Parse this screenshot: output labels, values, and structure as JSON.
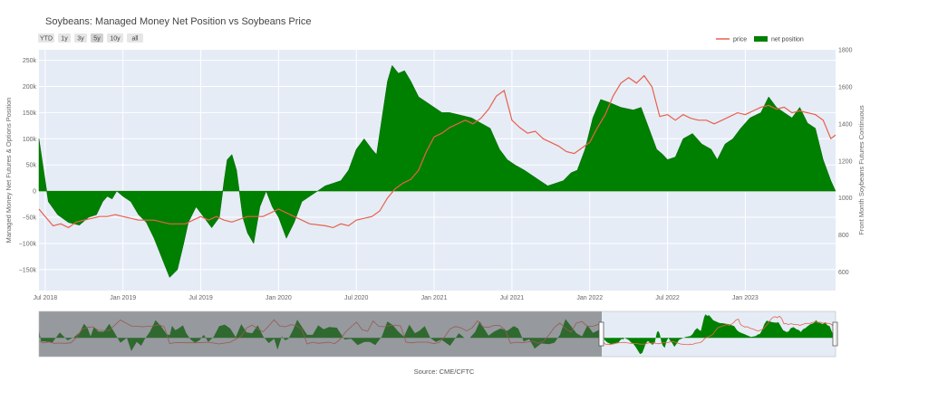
{
  "chart_data": {
    "type": "area",
    "title": "Soybeans: Managed Money Net Position vs Soybeans Price",
    "source": "Source: CME/CFTC",
    "range_buttons": [
      {
        "label": "YTD",
        "active": false
      },
      {
        "label": "1y",
        "active": false
      },
      {
        "label": "3y",
        "active": false
      },
      {
        "label": "5y",
        "active": true
      },
      {
        "label": "10y",
        "active": false
      },
      {
        "label": "all",
        "active": false
      }
    ],
    "legend": {
      "placement": "top-right",
      "items": [
        {
          "name": "price",
          "color": "#e8604c"
        },
        {
          "name": "net position",
          "color": "#008000"
        }
      ]
    },
    "ylabel": "Managed Money Net Futures & Options Position",
    "y2label": "Front Month Soybeans Futures Continuous",
    "xlim": [
      2018.46,
      2023.58
    ],
    "ylim": [
      -190000,
      270000
    ],
    "y2lim": [
      500,
      1800
    ],
    "x_ticks": [
      {
        "label": "Jul 2018",
        "x": 2018.5
      },
      {
        "label": "Jan 2019",
        "x": 2019.0
      },
      {
        "label": "Jul 2019",
        "x": 2019.5
      },
      {
        "label": "Jan 2020",
        "x": 2020.0
      },
      {
        "label": "Jul 2020",
        "x": 2020.5
      },
      {
        "label": "Jan 2021",
        "x": 2021.0
      },
      {
        "label": "Jul 2021",
        "x": 2021.5
      },
      {
        "label": "Jan 2022",
        "x": 2022.0
      },
      {
        "label": "Jul 2022",
        "x": 2022.5
      },
      {
        "label": "Jan 2023",
        "x": 2023.0
      }
    ],
    "y_ticks": [
      {
        "label": "250k",
        "v": 250000
      },
      {
        "label": "200k",
        "v": 200000
      },
      {
        "label": "150k",
        "v": 150000
      },
      {
        "label": "100k",
        "v": 100000
      },
      {
        "label": "50k",
        "v": 50000
      },
      {
        "label": "0",
        "v": 0
      },
      {
        "label": "−50k",
        "v": -50000
      },
      {
        "label": "−100k",
        "v": -100000
      },
      {
        "label": "−150k",
        "v": -150000
      }
    ],
    "y2_ticks": [
      {
        "label": "1800",
        "v": 1800
      },
      {
        "label": "1600",
        "v": 1600
      },
      {
        "label": "1400",
        "v": 1400
      },
      {
        "label": "1200",
        "v": 1200
      },
      {
        "label": "1000",
        "v": 1000
      },
      {
        "label": "800",
        "v": 800
      },
      {
        "label": "600",
        "v": 600
      }
    ],
    "navigator": {
      "selected_range": [
        2018.46,
        2023.58
      ],
      "full_range": [
        2014.0,
        2023.58
      ]
    },
    "series": [
      {
        "name": "net position",
        "color": "#008000",
        "x": [
          2018.46,
          2018.48,
          2018.52,
          2018.58,
          2018.65,
          2018.72,
          2018.78,
          2018.83,
          2018.87,
          2018.9,
          2018.93,
          2018.96,
          2019.0,
          2019.05,
          2019.1,
          2019.15,
          2019.2,
          2019.26,
          2019.3,
          2019.35,
          2019.39,
          2019.42,
          2019.47,
          2019.52,
          2019.57,
          2019.62,
          2019.65,
          2019.67,
          2019.7,
          2019.73,
          2019.77,
          2019.8,
          2019.84,
          2019.88,
          2019.92,
          2019.96,
          2020.0,
          2020.05,
          2020.1,
          2020.15,
          2020.2,
          2020.25,
          2020.3,
          2020.35,
          2020.4,
          2020.45,
          2020.5,
          2020.55,
          2020.6,
          2020.63,
          2020.67,
          2020.7,
          2020.73,
          2020.77,
          2020.81,
          2020.85,
          2020.9,
          2020.95,
          2021.0,
          2021.05,
          2021.1,
          2021.17,
          2021.24,
          2021.3,
          2021.36,
          2021.42,
          2021.47,
          2021.52,
          2021.58,
          2021.63,
          2021.68,
          2021.73,
          2021.78,
          2021.83,
          2021.88,
          2021.92,
          2021.97,
          2022.02,
          2022.07,
          2022.12,
          2022.2,
          2022.28,
          2022.33,
          2022.38,
          2022.43,
          2022.47,
          2022.5,
          2022.55,
          2022.6,
          2022.66,
          2022.72,
          2022.78,
          2022.82,
          2022.87,
          2022.92,
          2022.97,
          2023.03,
          2023.1,
          2023.15,
          2023.2,
          2023.25,
          2023.3,
          2023.35,
          2023.4,
          2023.45,
          2023.5,
          2023.55,
          2023.58
        ],
        "values": [
          100000,
          60000,
          -20000,
          -45000,
          -60000,
          -65000,
          -50000,
          -45000,
          -20000,
          -10000,
          -15000,
          0,
          -10000,
          -20000,
          -45000,
          -60000,
          -90000,
          -135000,
          -165000,
          -150000,
          -100000,
          -60000,
          -30000,
          -50000,
          -70000,
          -50000,
          20000,
          60000,
          70000,
          40000,
          -50000,
          -80000,
          -100000,
          -30000,
          0,
          -30000,
          -50000,
          -90000,
          -60000,
          -20000,
          -10000,
          0,
          10000,
          15000,
          20000,
          40000,
          80000,
          100000,
          80000,
          70000,
          150000,
          210000,
          240000,
          225000,
          230000,
          210000,
          180000,
          170000,
          160000,
          150000,
          150000,
          145000,
          140000,
          130000,
          120000,
          80000,
          60000,
          50000,
          40000,
          30000,
          20000,
          10000,
          15000,
          20000,
          35000,
          40000,
          80000,
          140000,
          175000,
          170000,
          160000,
          155000,
          160000,
          120000,
          80000,
          70000,
          60000,
          65000,
          100000,
          110000,
          90000,
          80000,
          60000,
          90000,
          100000,
          120000,
          140000,
          150000,
          180000,
          160000,
          150000,
          140000,
          160000,
          130000,
          120000,
          60000,
          20000,
          0
        ]
      },
      {
        "name": "price",
        "color": "#e8604c",
        "x": [
          2018.46,
          2018.5,
          2018.55,
          2018.6,
          2018.65,
          2018.7,
          2018.75,
          2018.8,
          2018.85,
          2018.9,
          2018.95,
          2019.0,
          2019.1,
          2019.2,
          2019.3,
          2019.4,
          2019.5,
          2019.55,
          2019.6,
          2019.65,
          2019.7,
          2019.8,
          2019.9,
          2020.0,
          2020.1,
          2020.2,
          2020.3,
          2020.35,
          2020.4,
          2020.45,
          2020.5,
          2020.55,
          2020.6,
          2020.65,
          2020.7,
          2020.75,
          2020.8,
          2020.85,
          2020.9,
          2020.95,
          2021.0,
          2021.05,
          2021.1,
          2021.15,
          2021.2,
          2021.25,
          2021.3,
          2021.35,
          2021.4,
          2021.45,
          2021.5,
          2021.55,
          2021.6,
          2021.65,
          2021.7,
          2021.75,
          2021.8,
          2021.85,
          2021.9,
          2021.95,
          2022.0,
          2022.05,
          2022.1,
          2022.15,
          2022.2,
          2022.25,
          2022.3,
          2022.35,
          2022.4,
          2022.45,
          2022.5,
          2022.55,
          2022.6,
          2022.65,
          2022.7,
          2022.75,
          2022.8,
          2022.85,
          2022.9,
          2022.95,
          2023.0,
          2023.05,
          2023.1,
          2023.15,
          2023.2,
          2023.25,
          2023.3,
          2023.35,
          2023.4,
          2023.45,
          2023.5,
          2023.55,
          2023.58
        ],
        "values": [
          940,
          900,
          850,
          860,
          840,
          870,
          880,
          890,
          900,
          900,
          910,
          900,
          880,
          880,
          860,
          860,
          900,
          880,
          900,
          880,
          870,
          900,
          900,
          940,
          900,
          860,
          850,
          840,
          860,
          850,
          880,
          890,
          900,
          930,
          1000,
          1050,
          1080,
          1100,
          1150,
          1250,
          1330,
          1350,
          1380,
          1400,
          1420,
          1400,
          1430,
          1480,
          1550,
          1580,
          1420,
          1380,
          1350,
          1360,
          1320,
          1300,
          1280,
          1250,
          1240,
          1270,
          1300,
          1380,
          1450,
          1550,
          1620,
          1650,
          1620,
          1660,
          1600,
          1440,
          1450,
          1420,
          1450,
          1430,
          1420,
          1420,
          1400,
          1420,
          1440,
          1460,
          1450,
          1470,
          1490,
          1500,
          1480,
          1490,
          1460,
          1470,
          1460,
          1450,
          1420,
          1320,
          1340
        ]
      }
    ]
  }
}
